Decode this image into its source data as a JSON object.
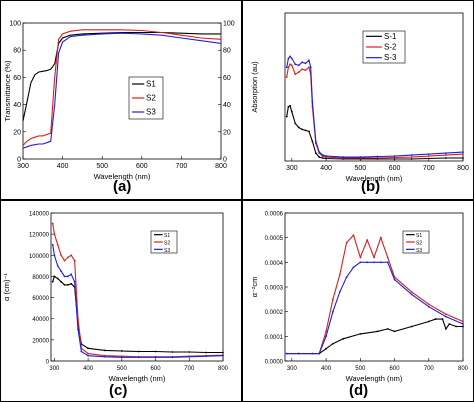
{
  "chart_data": [
    {
      "panel": "(a)",
      "type": "line",
      "xlabel": "Wavelength (nm)",
      "ylabel": "Transmittance (%)",
      "xlim": [
        300,
        800
      ],
      "ylim": [
        0,
        100
      ],
      "xticks": [
        "300",
        "400",
        "500",
        "600",
        "700",
        "800"
      ],
      "yticks": [
        "0",
        "20",
        "40",
        "60",
        "80",
        "100"
      ],
      "y2ticks": [
        "0",
        "20",
        "40",
        "60",
        "80",
        "100"
      ],
      "legend": "center-right",
      "grid": false,
      "series": [
        {
          "name": "S1",
          "color": "#000000",
          "x": [
            300,
            310,
            320,
            330,
            340,
            350,
            360,
            370,
            380,
            390,
            400,
            420,
            450,
            500,
            550,
            600,
            650,
            700,
            750,
            800
          ],
          "y": [
            28,
            42,
            56,
            62,
            64,
            64.5,
            65,
            66,
            70,
            85,
            89,
            91,
            92,
            92.5,
            93,
            93,
            93,
            92.5,
            92,
            92
          ]
        },
        {
          "name": "S2",
          "color": "#d42020",
          "x": [
            300,
            310,
            320,
            330,
            340,
            350,
            360,
            370,
            380,
            390,
            400,
            420,
            450,
            500,
            550,
            600,
            650,
            700,
            750,
            800
          ],
          "y": [
            10,
            13,
            15,
            16,
            17,
            17,
            18,
            19,
            60,
            88,
            92,
            94,
            95,
            95,
            95,
            94.5,
            93,
            91,
            89,
            88
          ]
        },
        {
          "name": "S3",
          "color": "#2020d4",
          "x": [
            300,
            310,
            320,
            330,
            340,
            350,
            360,
            370,
            380,
            390,
            400,
            420,
            450,
            500,
            550,
            600,
            650,
            700,
            750,
            800
          ],
          "y": [
            8,
            9,
            10,
            10.5,
            11,
            11,
            12,
            13,
            40,
            78,
            86,
            90,
            91,
            92,
            92.5,
            92,
            91,
            89,
            87,
            85
          ]
        }
      ]
    },
    {
      "panel": "(b)",
      "type": "line",
      "xlabel": "Wavelength (nm)",
      "ylabel": "Absorption (au)",
      "xlim": [
        280,
        800
      ],
      "ylim": [
        0,
        1.5
      ],
      "xticks": [
        "300",
        "400",
        "500",
        "600",
        "700",
        "800"
      ],
      "legend": "top-right",
      "grid": false,
      "series": [
        {
          "name": "S-1",
          "color": "#000000",
          "x": [
            285,
            290,
            295,
            300,
            310,
            320,
            330,
            340,
            350,
            360,
            370,
            380,
            390,
            400,
            450,
            500,
            550,
            600,
            650,
            700,
            750,
            800
          ],
          "y": [
            0.45,
            0.55,
            0.56,
            0.5,
            0.38,
            0.34,
            0.32,
            0.31,
            0.3,
            0.2,
            0.08,
            0.04,
            0.03,
            0.025,
            0.02,
            0.02,
            0.02,
            0.02,
            0.02,
            0.025,
            0.03,
            0.03
          ]
        },
        {
          "name": "S-2",
          "color": "#d42020",
          "x": [
            285,
            290,
            295,
            300,
            310,
            320,
            330,
            340,
            350,
            355,
            360,
            370,
            380,
            390,
            400,
            450,
            500,
            550,
            600,
            650,
            700,
            750,
            800
          ],
          "y": [
            0.85,
            0.95,
            0.98,
            0.97,
            0.88,
            0.9,
            0.93,
            0.92,
            0.95,
            0.88,
            0.55,
            0.18,
            0.08,
            0.05,
            0.04,
            0.03,
            0.03,
            0.03,
            0.035,
            0.04,
            0.05,
            0.06,
            0.07
          ]
        },
        {
          "name": "S-3",
          "color": "#2020d4",
          "x": [
            285,
            290,
            295,
            300,
            310,
            320,
            330,
            340,
            350,
            355,
            360,
            370,
            380,
            390,
            400,
            450,
            500,
            550,
            600,
            650,
            700,
            750,
            800
          ],
          "y": [
            0.95,
            1.04,
            1.06,
            1.04,
            0.98,
            0.97,
            1.0,
            0.99,
            1.02,
            0.95,
            0.6,
            0.2,
            0.09,
            0.06,
            0.05,
            0.04,
            0.04,
            0.045,
            0.05,
            0.06,
            0.07,
            0.08,
            0.09
          ]
        }
      ]
    },
    {
      "panel": "(c)",
      "type": "line",
      "xlabel": "Wavelength (nm)",
      "ylabel": "α (cm)⁻¹",
      "xlim": [
        290,
        800
      ],
      "ylim": [
        0,
        140000
      ],
      "xticks": [
        "300",
        "400",
        "500",
        "600",
        "700",
        "800"
      ],
      "yticks": [
        "0",
        "20000",
        "40000",
        "60000",
        "80000",
        "100000",
        "120000",
        "140000"
      ],
      "legend": "top-right",
      "grid": false,
      "series": [
        {
          "name": "S1",
          "color": "#000000",
          "x": [
            295,
            300,
            310,
            320,
            330,
            340,
            350,
            360,
            370,
            380,
            400,
            450,
            500,
            550,
            600,
            650,
            700,
            750,
            800
          ],
          "y": [
            75000,
            80000,
            78000,
            75000,
            72000,
            72000,
            73000,
            70000,
            35000,
            16000,
            12000,
            10000,
            9500,
            9000,
            9000,
            8500,
            8500,
            8000,
            8000
          ]
        },
        {
          "name": "S2",
          "color": "#d42020",
          "x": [
            295,
            300,
            310,
            320,
            330,
            340,
            350,
            360,
            370,
            380,
            400,
            450,
            500,
            550,
            600,
            650,
            700,
            750,
            800
          ],
          "y": [
            130000,
            120000,
            110000,
            100000,
            95000,
            98000,
            100000,
            95000,
            40000,
            12000,
            7000,
            5000,
            4500,
            4000,
            4000,
            4000,
            4500,
            5000,
            5500
          ]
        },
        {
          "name": "S3",
          "color": "#2020d4",
          "x": [
            295,
            300,
            310,
            320,
            330,
            340,
            350,
            360,
            370,
            380,
            400,
            450,
            500,
            550,
            600,
            650,
            700,
            750,
            800
          ],
          "y": [
            110000,
            100000,
            90000,
            85000,
            80000,
            80000,
            82000,
            75000,
            30000,
            9000,
            5000,
            4000,
            3500,
            3500,
            3500,
            3500,
            4000,
            4500,
            5000
          ]
        }
      ]
    },
    {
      "panel": "(d)",
      "type": "line",
      "xlabel": "Wavelength (nm)",
      "ylabel": "α⁻²cm",
      "xlim": [
        280,
        800
      ],
      "ylim": [
        0,
        0.0006
      ],
      "xticks": [
        "300",
        "400",
        "500",
        "600",
        "700",
        "800"
      ],
      "yticks": [
        "0.0000",
        "0.0001",
        "0.0002",
        "0.0003",
        "0.0004",
        "0.0005",
        "0.0006"
      ],
      "legend": "top-right",
      "grid": false,
      "series": [
        {
          "name": "S1",
          "color": "#000000",
          "x": [
            285,
            320,
            360,
            380,
            400,
            420,
            450,
            500,
            550,
            580,
            600,
            650,
            700,
            720,
            740,
            750,
            760,
            780,
            800
          ],
          "y": [
            3e-05,
            3e-05,
            3e-05,
            3e-05,
            5e-05,
            7e-05,
            9e-05,
            0.00011,
            0.00012,
            0.00013,
            0.00012,
            0.00014,
            0.00016,
            0.00017,
            0.00017,
            0.00013,
            0.00015,
            0.00014,
            0.00014
          ]
        },
        {
          "name": "S2",
          "color": "#d42020",
          "x": [
            285,
            320,
            360,
            380,
            400,
            420,
            440,
            460,
            480,
            500,
            520,
            540,
            560,
            580,
            600,
            650,
            700,
            750,
            800
          ],
          "y": [
            3e-05,
            3e-05,
            3e-05,
            3e-05,
            0.00012,
            0.00025,
            0.00035,
            0.00048,
            0.00051,
            0.00042,
            0.00049,
            0.00042,
            0.0005,
            0.00042,
            0.00034,
            0.00028,
            0.00023,
            0.00019,
            0.00016
          ]
        },
        {
          "name": "S3",
          "color": "#2020d4",
          "x": [
            285,
            320,
            360,
            380,
            400,
            420,
            440,
            460,
            480,
            500,
            520,
            540,
            560,
            580,
            600,
            650,
            700,
            750,
            800
          ],
          "y": [
            3e-05,
            3e-05,
            3e-05,
            3e-05,
            0.0001,
            0.0002,
            0.00028,
            0.00034,
            0.00038,
            0.0004,
            0.0004,
            0.0004,
            0.0004,
            0.0004,
            0.00033,
            0.00027,
            0.00022,
            0.00018,
            0.00015
          ]
        }
      ]
    }
  ]
}
